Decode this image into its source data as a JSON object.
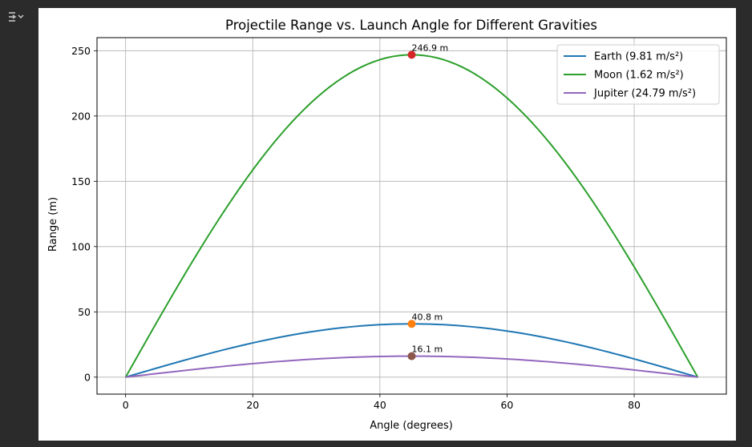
{
  "cell_output": {
    "toggle_icon": "output-collapse-icon"
  },
  "chart_data": {
    "type": "line",
    "title": "Projectile Range vs. Launch Angle for Different Gravities",
    "xlabel": "Angle (degrees)",
    "ylabel": "Range (m)",
    "xlim": [
      -4.5,
      94.5
    ],
    "ylim": [
      -13,
      260
    ],
    "xticks": [
      0,
      20,
      40,
      60,
      80
    ],
    "yticks": [
      0,
      50,
      100,
      150,
      200,
      250
    ],
    "grid": true,
    "legend_position": "top-right",
    "velocity_note": "",
    "series": [
      {
        "name": "Earth (9.81 m/s²)",
        "color": "#1f77b4",
        "max_range": 40.8,
        "max_angle": 45
      },
      {
        "name": "Moon (1.62 m/s²)",
        "color": "#2ca02c",
        "max_range": 246.9,
        "max_angle": 45
      },
      {
        "name": "Jupiter (24.79 m/s²)",
        "color": "#9467bd",
        "max_range": 16.1,
        "max_angle": 45
      }
    ],
    "annotations": [
      {
        "x": 45,
        "y": 246.9,
        "text": "246.9 m",
        "marker_color": "#d62728"
      },
      {
        "x": 45,
        "y": 40.8,
        "text": "40.8 m",
        "marker_color": "#ff7f0e"
      },
      {
        "x": 45,
        "y": 16.1,
        "text": "16.1 m",
        "marker_color": "#8c564b"
      }
    ]
  }
}
